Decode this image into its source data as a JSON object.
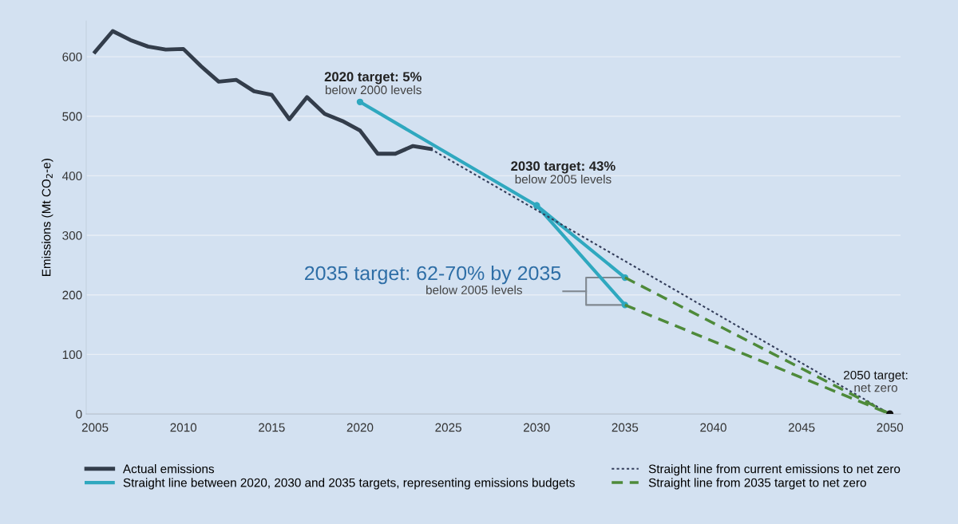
{
  "chart_data": {
    "type": "line",
    "ylabel": "Emissions (Mt CO$_{2}$-e)",
    "xlim": [
      2004.5,
      2050.6
    ],
    "xticks": [
      2005,
      2010,
      2015,
      2020,
      2025,
      2030,
      2035,
      2040,
      2045,
      2050
    ],
    "ylim": [
      0,
      660
    ],
    "yticks": [
      0,
      100,
      200,
      300,
      400,
      500,
      600
    ],
    "grid": "y",
    "legend": "bottom",
    "series": [
      {
        "name": "Actual emissions",
        "color": "#333d4b",
        "line_style": "solid",
        "x": [
          2005,
          2006,
          2007,
          2008,
          2009,
          2010,
          2011,
          2012,
          2013,
          2014,
          2015,
          2016,
          2017,
          2018,
          2019,
          2020,
          2021,
          2022,
          2023,
          2024
        ],
        "values": [
          608,
          643,
          628,
          617,
          612,
          613,
          584,
          558,
          561,
          542,
          536,
          495,
          532,
          504,
          492,
          476,
          437,
          437,
          450,
          445
        ]
      },
      {
        "name": "Straight line between 2020, 2030 and 2035 targets, representing emissions budgets",
        "color": "#2fa8bf",
        "line_style": "solid",
        "marker": "circle",
        "x": [
          2020,
          2030,
          2035
        ],
        "values": [
          524,
          350,
          229
        ]
      },
      {
        "color": "#2fa8bf",
        "line_style": "solid",
        "marker": "circle",
        "x": [
          2030,
          2035
        ],
        "values": [
          350,
          183
        ]
      },
      {
        "name": "Straight line from current emissions to net zero",
        "color": "#333d5a",
        "line_style": "dotted",
        "x": [
          2024,
          2050
        ],
        "values": [
          445,
          0
        ]
      },
      {
        "name": "Straight line from 2035 target to net zero",
        "color": "#4e8a3a",
        "line_style": "dashed",
        "x": [
          2035,
          2050
        ],
        "values": [
          229,
          0
        ]
      },
      {
        "color": "#4e8a3a",
        "line_style": "dashed",
        "x": [
          2035,
          2050
        ],
        "values": [
          183,
          0
        ]
      },
      {
        "type": "scatter",
        "color": "#111111",
        "marker": "circle",
        "x": [
          2050
        ],
        "values": [
          0
        ]
      }
    ],
    "annotations": [
      {
        "text": "2020 target: 5%\nbelow 2000 levels",
        "x": 2020,
        "y": 524
      },
      {
        "text": "2030 target: 43%\nbelow 2005 levels",
        "x": 2030,
        "y": 350
      },
      "2035 target: 62-70% by 2035\nbelow 2005 levels",
      {
        "text": "2050 target:\nnet zero",
        "x": 2050,
        "y": 0
      }
    ]
  }
}
